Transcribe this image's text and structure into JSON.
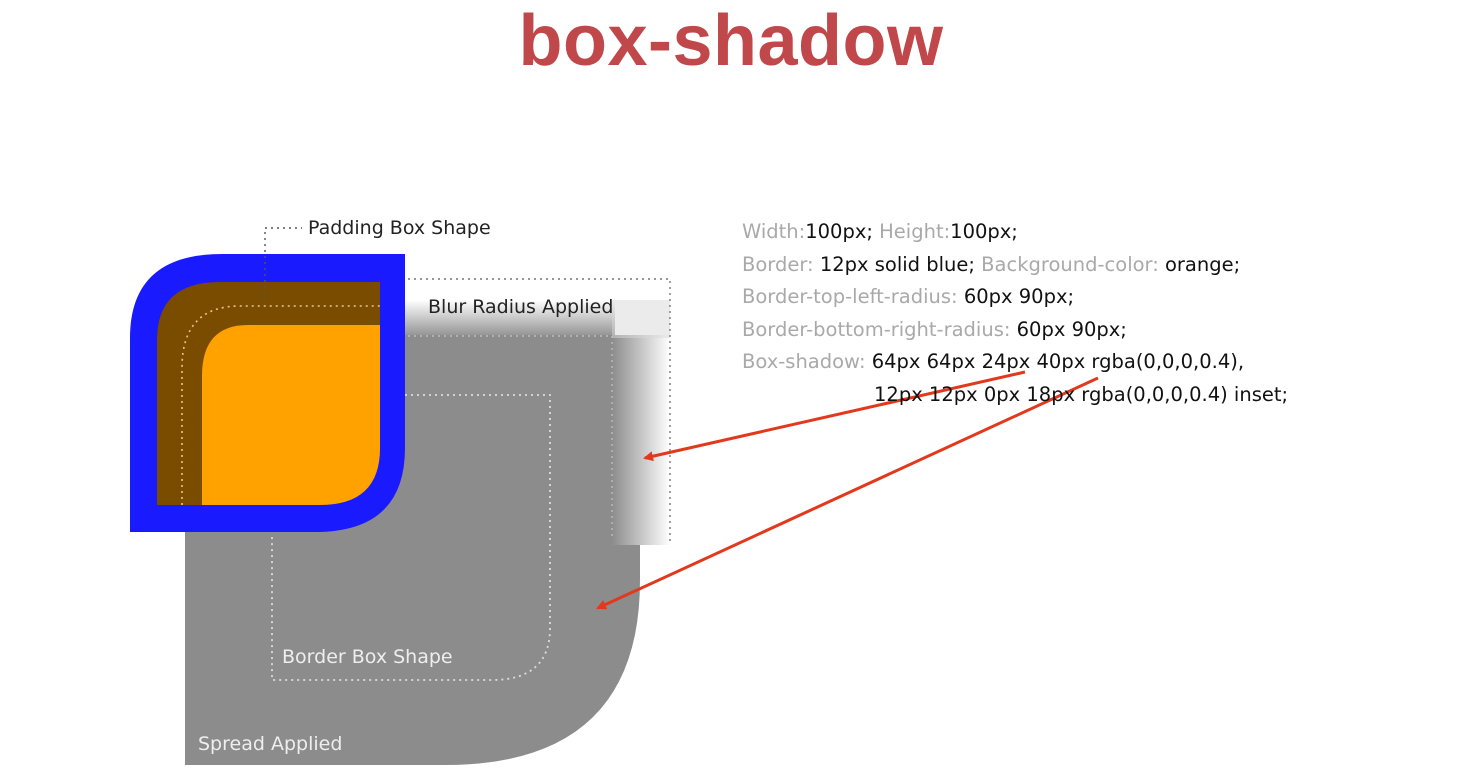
{
  "title": "box-shadow",
  "labels": {
    "padding_box_shape": "Padding Box Shape",
    "blur_radius_applied": "Blur Radius Applied",
    "border_box_shape": "Border Box Shape",
    "spread_applied": "Spread Applied"
  },
  "css_properties": [
    [
      {
        "k": "Width:",
        "v": "100px;"
      },
      {
        "k": "Height:",
        "v": "100px;"
      }
    ],
    [
      {
        "k": "Border: ",
        "v": "12px solid blue;"
      },
      {
        "k": "Background-color: ",
        "v": "orange;"
      }
    ],
    [
      {
        "k": "Border-top-left-radius: ",
        "v": "60px 90px;"
      }
    ],
    [
      {
        "k": "Border-bottom-right-radius: ",
        "v": "60px 90px;"
      }
    ],
    [
      {
        "k": "Box-shadow: ",
        "v": "64px 64px 24px 40px rgba(0,0,0,0.4),"
      }
    ],
    [
      {
        "k": "",
        "v": "12px 12px 0px 18px rgba(0,0,0,0.4) inset;",
        "indent": true
      }
    ]
  ],
  "colors": {
    "title": "#c0484a",
    "border": "#1a1aff",
    "background": "#ffa200",
    "inset_shadow": "#7a4c00",
    "spread_shadow": "#8c8c8c",
    "arrow": "#e2381c"
  }
}
